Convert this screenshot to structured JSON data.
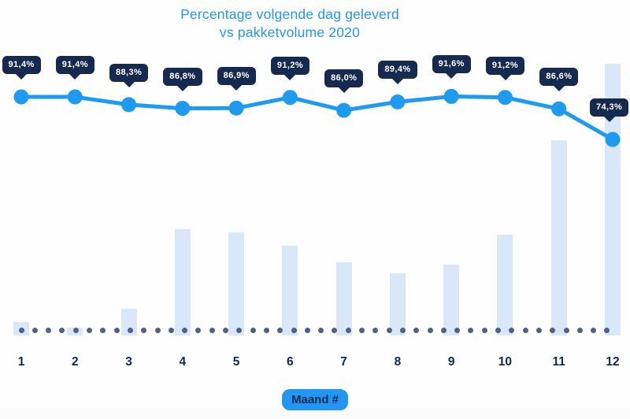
{
  "title": {
    "line1": "Percentage volgende dag geleverd",
    "line2": "vs pakketvolume 2020"
  },
  "x_axis": {
    "badge_label": "Maand #"
  },
  "chart_data": {
    "type": "combo",
    "title": "Percentage volgende dag geleverd vs pakketvolume 2020",
    "xlabel": "Maand #",
    "ylabel": "",
    "legend": "none",
    "grid": false,
    "baseline_style": "dotted",
    "categories": [
      "1",
      "2",
      "3",
      "4",
      "5",
      "6",
      "7",
      "8",
      "9",
      "10",
      "11",
      "12"
    ],
    "series": [
      {
        "name": "percentage-volgende-dag-geleverd",
        "type": "line",
        "unit": "%",
        "values": [
          91.4,
          91.4,
          88.3,
          86.8,
          86.9,
          91.2,
          86.0,
          89.4,
          91.6,
          91.2,
          86.6,
          74.3
        ],
        "point_labels": [
          "91,4%",
          "91,4%",
          "88,3%",
          "86,8%",
          "86,9%",
          "91,2%",
          "86,0%",
          "89,4%",
          "91,6%",
          "91,2%",
          "86,6%",
          "74,3%"
        ]
      },
      {
        "name": "pakketvolume",
        "type": "bar",
        "unit": "relative, max month = 100 (no value axis shown)",
        "values": [
          5,
          3,
          10,
          39,
          38,
          33,
          27,
          23,
          26,
          37,
          72,
          100
        ]
      }
    ]
  },
  "colors": {
    "title_blue": "#2196F3",
    "line_blue": "#1E9BF0",
    "bar_light_blue": "#D9E8F8",
    "tooltip_navy": "#16294E",
    "label_navy": "#14294F",
    "dot_slate": "#4F6285",
    "badge_blue": "#2196F3",
    "footer_gray": "#FAFAFA"
  }
}
